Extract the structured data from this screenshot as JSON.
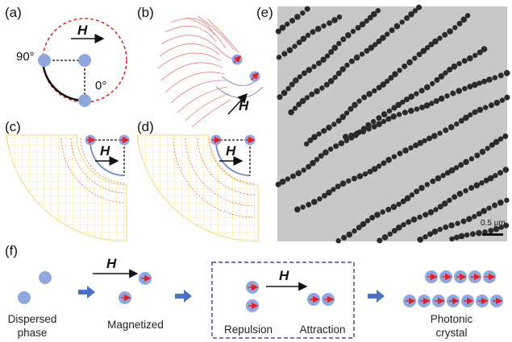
{
  "panels": {
    "a": {
      "label": "(a)",
      "field": "H",
      "angle_90": "90°",
      "angle_0": "0°"
    },
    "b": {
      "label": "(b)",
      "field": "H"
    },
    "c": {
      "label": "(c)",
      "field": "H"
    },
    "d": {
      "label": "(d)",
      "field": "H"
    },
    "e": {
      "label": "(e)",
      "scale_bar": "0.5 µm"
    },
    "f": {
      "label": "(f)",
      "field": "H",
      "stages": {
        "dispersed": "Dispersed\nphase",
        "magnetized": "Magnetized",
        "repulsion": "Repulsion",
        "attraction": "Attraction",
        "photonic": "Photonic\ncrystal"
      }
    }
  },
  "colors": {
    "particle": "#8fa7dd",
    "arrow_red": "#e0232b",
    "dashed_circle": "#e02020",
    "panel_f_arrow": "#4a72c4",
    "dashed_box": "#1a2a6a",
    "mesh_yellow": "#f0d050",
    "mesh_red": "#e05050",
    "arc_blue": "#6f86c8",
    "tem_background": "#c8c8c8",
    "tem_particle": "#2a2a2a"
  }
}
